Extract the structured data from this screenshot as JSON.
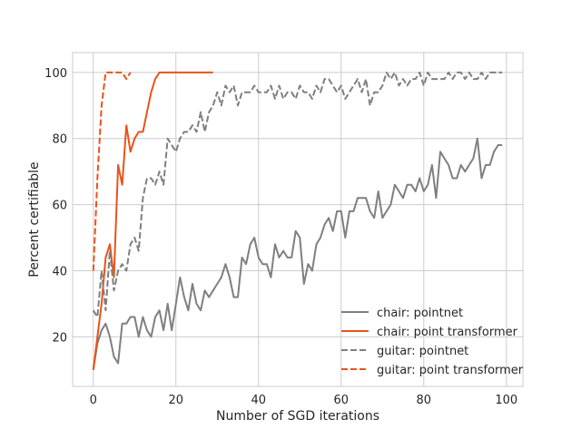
{
  "chart_data": {
    "type": "line",
    "title": "",
    "xlabel": "Number of SGD iterations",
    "ylabel": "Percent certifiable",
    "xlim": [
      -5,
      104
    ],
    "ylim": [
      5,
      106
    ],
    "xticks": [
      0,
      20,
      40,
      60,
      80,
      100
    ],
    "yticks": [
      20,
      40,
      60,
      80,
      100
    ],
    "grid": true,
    "legend_position": "lower-right",
    "series": [
      {
        "name": "chair: pointnet",
        "color": "#7f7f7f",
        "dash": "solid",
        "x": [
          0,
          1,
          2,
          3,
          4,
          5,
          6,
          7,
          8,
          9,
          10,
          11,
          12,
          13,
          14,
          15,
          16,
          17,
          18,
          19,
          20,
          21,
          22,
          23,
          24,
          25,
          26,
          27,
          28,
          29,
          30,
          31,
          32,
          33,
          34,
          35,
          36,
          37,
          38,
          39,
          40,
          41,
          42,
          43,
          44,
          45,
          46,
          47,
          48,
          49,
          50,
          51,
          52,
          53,
          54,
          55,
          56,
          57,
          58,
          59,
          60,
          61,
          62,
          63,
          64,
          65,
          66,
          67,
          68,
          69,
          70,
          71,
          72,
          73,
          74,
          75,
          76,
          77,
          78,
          79,
          80,
          81,
          82,
          83,
          84,
          85,
          86,
          87,
          88,
          89,
          90,
          91,
          92,
          93,
          94,
          95,
          96,
          97,
          98,
          99
        ],
        "y": [
          10,
          18,
          22,
          24,
          20,
          14,
          12,
          24,
          24,
          26,
          26,
          20,
          26,
          22,
          20,
          26,
          28,
          22,
          30,
          22,
          30,
          38,
          32,
          28,
          36,
          30,
          28,
          34,
          32,
          34,
          36,
          38,
          42,
          38,
          32,
          32,
          44,
          42,
          48,
          50,
          44,
          42,
          42,
          38,
          48,
          44,
          46,
          44,
          44,
          52,
          50,
          36,
          42,
          40,
          48,
          50,
          54,
          56,
          52,
          58,
          58,
          50,
          58,
          58,
          62,
          62,
          62,
          58,
          56,
          64,
          56,
          58,
          60,
          66,
          64,
          62,
          66,
          66,
          64,
          68,
          64,
          66,
          72,
          62,
          76,
          74,
          72,
          68,
          68,
          72,
          70,
          72,
          74,
          80,
          68,
          72,
          72,
          76,
          78,
          78
        ]
      },
      {
        "name": "chair: point transformer",
        "color": "#e8541a",
        "dash": "solid",
        "x": [
          0,
          1,
          2,
          3,
          4,
          5,
          6,
          7,
          8,
          9,
          10,
          11,
          12,
          13,
          14,
          15,
          16,
          17,
          18,
          19,
          20,
          21,
          22,
          23,
          24,
          25,
          26,
          27,
          28,
          29
        ],
        "y": [
          10,
          20,
          30,
          44,
          48,
          38,
          72,
          66,
          84,
          76,
          80,
          82,
          82,
          88,
          94,
          98,
          100,
          100,
          100,
          100,
          100,
          100,
          100,
          100,
          100,
          100,
          100,
          100,
          100,
          100
        ]
      },
      {
        "name": "guitar: pointnet",
        "color": "#7f7f7f",
        "dash": "dashed",
        "x": [
          0,
          1,
          2,
          3,
          4,
          5,
          6,
          7,
          8,
          9,
          10,
          11,
          12,
          13,
          14,
          15,
          16,
          17,
          18,
          19,
          20,
          21,
          22,
          23,
          24,
          25,
          26,
          27,
          28,
          29,
          30,
          31,
          32,
          33,
          34,
          35,
          36,
          37,
          38,
          39,
          40,
          41,
          42,
          43,
          44,
          45,
          46,
          47,
          48,
          49,
          50,
          51,
          52,
          53,
          54,
          55,
          56,
          57,
          58,
          59,
          60,
          61,
          62,
          63,
          64,
          65,
          66,
          67,
          68,
          69,
          70,
          71,
          72,
          73,
          74,
          75,
          76,
          77,
          78,
          79,
          80,
          81,
          82,
          83,
          84,
          85,
          86,
          87,
          88,
          89,
          90,
          91,
          92,
          93,
          94,
          95,
          96,
          97,
          98,
          99
        ],
        "y": [
          28,
          26,
          40,
          28,
          46,
          34,
          40,
          42,
          40,
          48,
          50,
          46,
          62,
          68,
          68,
          66,
          70,
          66,
          80,
          78,
          76,
          80,
          82,
          82,
          84,
          82,
          88,
          82,
          88,
          90,
          94,
          90,
          96,
          94,
          96,
          90,
          94,
          94,
          94,
          96,
          94,
          94,
          94,
          96,
          92,
          96,
          92,
          94,
          94,
          92,
          96,
          94,
          94,
          92,
          96,
          94,
          98,
          98,
          96,
          94,
          96,
          92,
          94,
          96,
          98,
          94,
          98,
          90,
          94,
          94,
          96,
          100,
          98,
          100,
          96,
          98,
          96,
          98,
          98,
          100,
          96,
          100,
          98,
          98,
          98,
          98,
          100,
          98,
          100,
          100,
          98,
          100,
          98,
          98,
          100,
          98,
          100,
          100,
          100,
          100
        ]
      },
      {
        "name": "guitar: point transformer",
        "color": "#e8541a",
        "dash": "dashed",
        "x": [
          0,
          1,
          2,
          3,
          4,
          5,
          6,
          7,
          8,
          9
        ],
        "y": [
          40,
          68,
          90,
          100,
          100,
          100,
          100,
          100,
          98,
          100
        ]
      }
    ]
  }
}
